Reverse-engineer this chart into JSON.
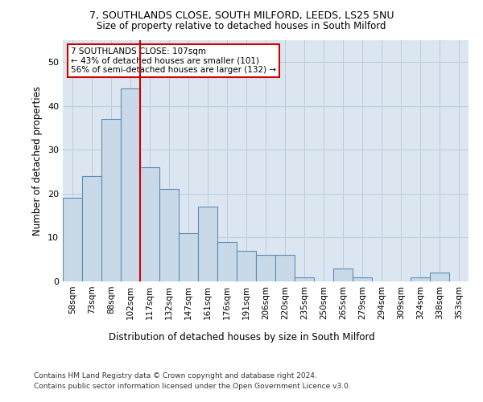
{
  "title1": "7, SOUTHLANDS CLOSE, SOUTH MILFORD, LEEDS, LS25 5NU",
  "title2": "Size of property relative to detached houses in South Milford",
  "xlabel": "Distribution of detached houses by size in South Milford",
  "ylabel": "Number of detached properties",
  "categories": [
    "58sqm",
    "73sqm",
    "88sqm",
    "102sqm",
    "117sqm",
    "132sqm",
    "147sqm",
    "161sqm",
    "176sqm",
    "191sqm",
    "206sqm",
    "220sqm",
    "235sqm",
    "250sqm",
    "265sqm",
    "279sqm",
    "294sqm",
    "309sqm",
    "324sqm",
    "338sqm",
    "353sqm"
  ],
  "values": [
    19,
    24,
    37,
    44,
    26,
    21,
    11,
    17,
    9,
    7,
    6,
    6,
    1,
    0,
    3,
    1,
    0,
    0,
    1,
    2,
    0
  ],
  "bar_color": "#c9d9e8",
  "bar_edge_color": "#5b8db8",
  "vline_color": "#cc0000",
  "annotation_text": "7 SOUTHLANDS CLOSE: 107sqm\n← 43% of detached houses are smaller (101)\n56% of semi-detached houses are larger (132) →",
  "annotation_box_color": "#ffffff",
  "annotation_box_edge": "#cc0000",
  "grid_color": "#bbccd8",
  "background_color": "#dce6f0",
  "footer1": "Contains HM Land Registry data © Crown copyright and database right 2024.",
  "footer2": "Contains public sector information licensed under the Open Government Licence v3.0.",
  "ylim": [
    0,
    55
  ]
}
